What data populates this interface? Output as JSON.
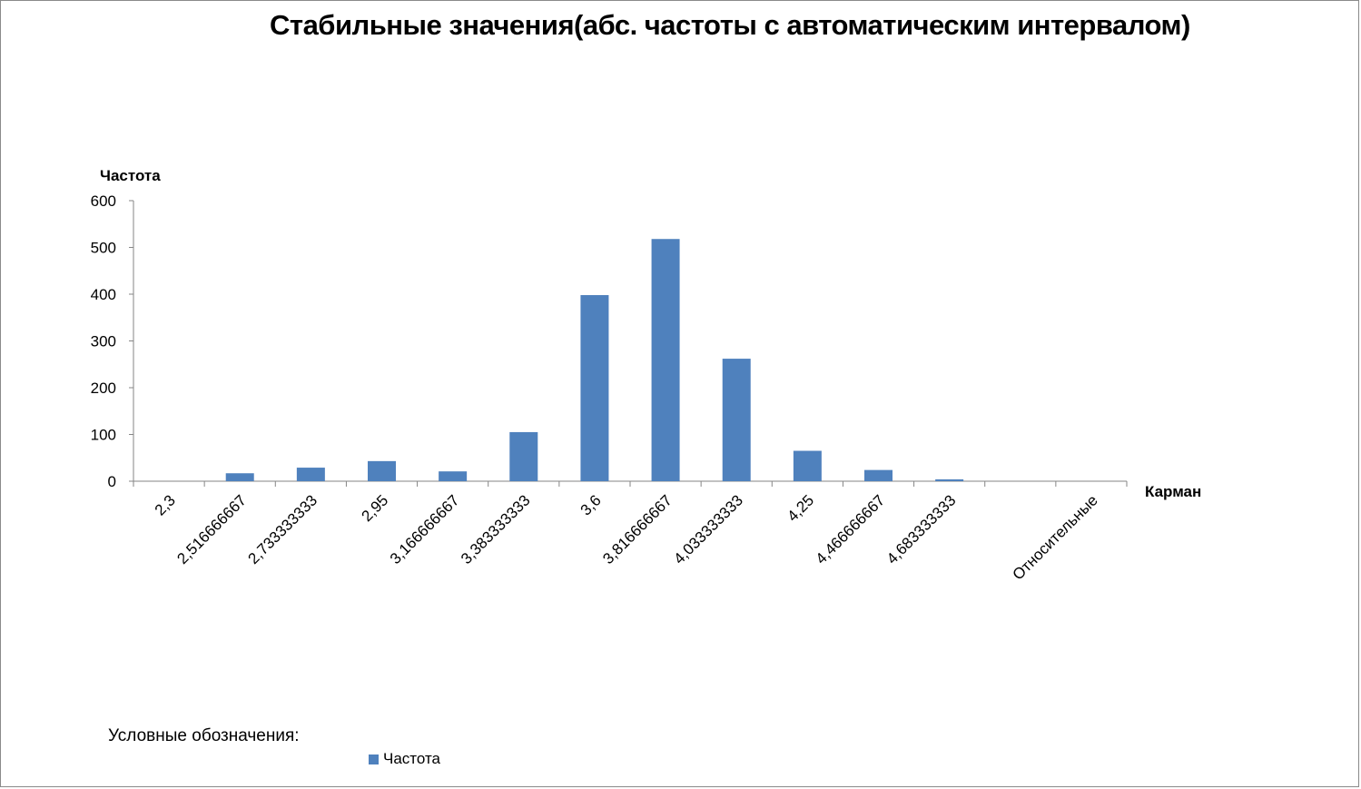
{
  "chart_data": {
    "type": "bar",
    "title": "Стабильные значения(абс. частоты с автоматическим интервалом)",
    "xlabel": "Карман",
    "ylabel": "Частота",
    "categories": [
      "2,3",
      "2,516666667",
      "2,733333333",
      "2,95",
      "3,166666667",
      "3,383333333",
      "3,6",
      "3,816666667",
      "4,033333333",
      "4,25",
      "4,466666667",
      "4,683333333",
      "",
      "Относительные"
    ],
    "series": [
      {
        "name": "Частота",
        "color": "#4f81bd",
        "values": [
          0,
          17,
          29,
          43,
          21,
          105,
          398,
          518,
          262,
          65,
          24,
          4,
          0,
          0
        ]
      }
    ],
    "ylim": [
      0,
      600
    ],
    "yticks": [
      0,
      100,
      200,
      300,
      400,
      500,
      600
    ],
    "grid": false,
    "legend_title": "Условные обозначения:",
    "legend_position": "bottom-left"
  }
}
